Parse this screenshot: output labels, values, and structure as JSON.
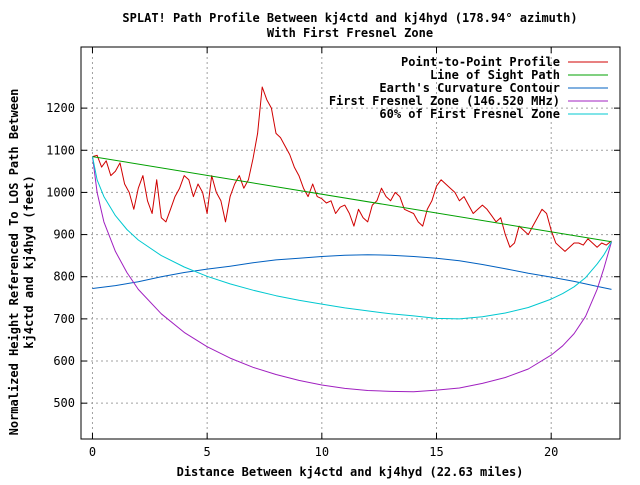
{
  "chart_data": {
    "type": "line",
    "title": "SPLAT! Path Profile Between kj4ctd and kj4hyd (178.94° azimuth)",
    "subtitle": "With First Fresnel Zone",
    "xlabel": "Distance Between kj4ctd and kj4hyd (22.63 miles)",
    "ylabel_line1": "Normalized Height Referenced To LOS Path Between",
    "ylabel_line2": "kj4ctd and kj4hyd (feet)",
    "xlim": [
      -0.5,
      23.0
    ],
    "ylim": [
      415,
      1345
    ],
    "x_ticks": [
      0,
      5,
      10,
      15,
      20
    ],
    "y_ticks": [
      500,
      600,
      700,
      800,
      900,
      1000,
      1100,
      1200
    ],
    "grid": true,
    "legend_position": "top-right",
    "series": [
      {
        "name": "Point-to-Point Profile",
        "color": "#d00000",
        "x": [
          0,
          0.2,
          0.4,
          0.6,
          0.8,
          1.0,
          1.2,
          1.4,
          1.6,
          1.8,
          2.0,
          2.2,
          2.4,
          2.6,
          2.8,
          3.0,
          3.2,
          3.4,
          3.6,
          3.8,
          4.0,
          4.2,
          4.4,
          4.6,
          4.8,
          5.0,
          5.2,
          5.4,
          5.6,
          5.8,
          6.0,
          6.2,
          6.4,
          6.6,
          6.8,
          7.0,
          7.2,
          7.4,
          7.6,
          7.8,
          8.0,
          8.2,
          8.4,
          8.6,
          8.8,
          9.0,
          9.2,
          9.4,
          9.6,
          9.8,
          10.0,
          10.2,
          10.4,
          10.6,
          10.8,
          11.0,
          11.2,
          11.4,
          11.6,
          11.8,
          12.0,
          12.2,
          12.4,
          12.6,
          12.8,
          13.0,
          13.2,
          13.4,
          13.6,
          13.8,
          14.0,
          14.2,
          14.4,
          14.6,
          14.8,
          15.0,
          15.2,
          15.4,
          15.6,
          15.8,
          16.0,
          16.2,
          16.4,
          16.6,
          16.8,
          17.0,
          17.2,
          17.4,
          17.6,
          17.8,
          18.0,
          18.2,
          18.4,
          18.6,
          18.8,
          19.0,
          19.2,
          19.4,
          19.6,
          19.8,
          20.0,
          20.2,
          20.4,
          20.6,
          20.8,
          21.0,
          21.2,
          21.4,
          21.6,
          21.8,
          22.0,
          22.2,
          22.4,
          22.63
        ],
        "y": [
          1085,
          1088,
          1060,
          1075,
          1040,
          1050,
          1070,
          1020,
          1000,
          960,
          1010,
          1040,
          980,
          950,
          1030,
          940,
          930,
          960,
          990,
          1010,
          1040,
          1030,
          990,
          1020,
          1000,
          950,
          1040,
          1000,
          980,
          930,
          990,
          1020,
          1040,
          1010,
          1030,
          1080,
          1140,
          1250,
          1220,
          1200,
          1140,
          1130,
          1110,
          1090,
          1060,
          1040,
          1010,
          990,
          1020,
          990,
          985,
          975,
          980,
          950,
          965,
          970,
          950,
          920,
          960,
          940,
          930,
          970,
          980,
          1010,
          990,
          980,
          1000,
          990,
          960,
          955,
          950,
          930,
          920,
          960,
          980,
          1015,
          1030,
          1020,
          1010,
          1000,
          980,
          990,
          970,
          950,
          960,
          970,
          960,
          945,
          930,
          940,
          900,
          870,
          880,
          920,
          910,
          900,
          920,
          940,
          960,
          950,
          910,
          880,
          870,
          860,
          870,
          880,
          880,
          875,
          890,
          880,
          870,
          880,
          875,
          885
        ]
      },
      {
        "name": "Line of Sight Path",
        "color": "#00a000",
        "x": [
          0,
          22.63
        ],
        "y": [
          1085,
          883
        ]
      },
      {
        "name": "Earth's Curvature Contour",
        "color": "#0060c0",
        "x": [
          0,
          1,
          2,
          3,
          4,
          5,
          6,
          7,
          8,
          9,
          10,
          11,
          12,
          13,
          14,
          15,
          16,
          17,
          18,
          19,
          20,
          21,
          22,
          22.63
        ],
        "y": [
          772,
          779,
          788,
          800,
          810,
          818,
          825,
          833,
          840,
          844,
          848,
          851,
          852,
          851,
          848,
          844,
          838,
          829,
          819,
          808,
          799,
          789,
          777,
          770
        ]
      },
      {
        "name": "First Fresnel Zone (146.520 MHz)",
        "color": "#a020c0",
        "x": [
          0,
          0.2,
          0.5,
          1,
          1.5,
          2,
          3,
          4,
          5,
          6,
          7,
          8,
          9,
          10,
          11,
          12,
          13,
          14,
          15,
          16,
          17,
          18,
          19,
          20,
          20.5,
          21,
          21.5,
          22,
          22.3,
          22.63
        ],
        "y": [
          1085,
          1000,
          930,
          860,
          810,
          770,
          712,
          668,
          634,
          607,
          585,
          568,
          554,
          543,
          535,
          530,
          528,
          527,
          531,
          536,
          547,
          561,
          581,
          614,
          636,
          665,
          706,
          770,
          820,
          883
        ]
      },
      {
        "name": "60% of First Fresnel Zone",
        "color": "#00c8d0",
        "x": [
          0,
          0.2,
          0.5,
          1,
          1.5,
          2,
          3,
          4,
          5,
          6,
          7,
          8,
          9,
          10,
          11,
          12,
          13,
          14,
          15,
          16,
          17,
          18,
          19,
          20,
          20.5,
          21,
          21.5,
          22,
          22.3,
          22.63
        ],
        "y": [
          1085,
          1030,
          990,
          945,
          912,
          887,
          850,
          823,
          801,
          783,
          768,
          755,
          744,
          735,
          726,
          719,
          712,
          707,
          701,
          700,
          705,
          714,
          727,
          747,
          760,
          776,
          798,
          830,
          852,
          883
        ]
      }
    ]
  }
}
